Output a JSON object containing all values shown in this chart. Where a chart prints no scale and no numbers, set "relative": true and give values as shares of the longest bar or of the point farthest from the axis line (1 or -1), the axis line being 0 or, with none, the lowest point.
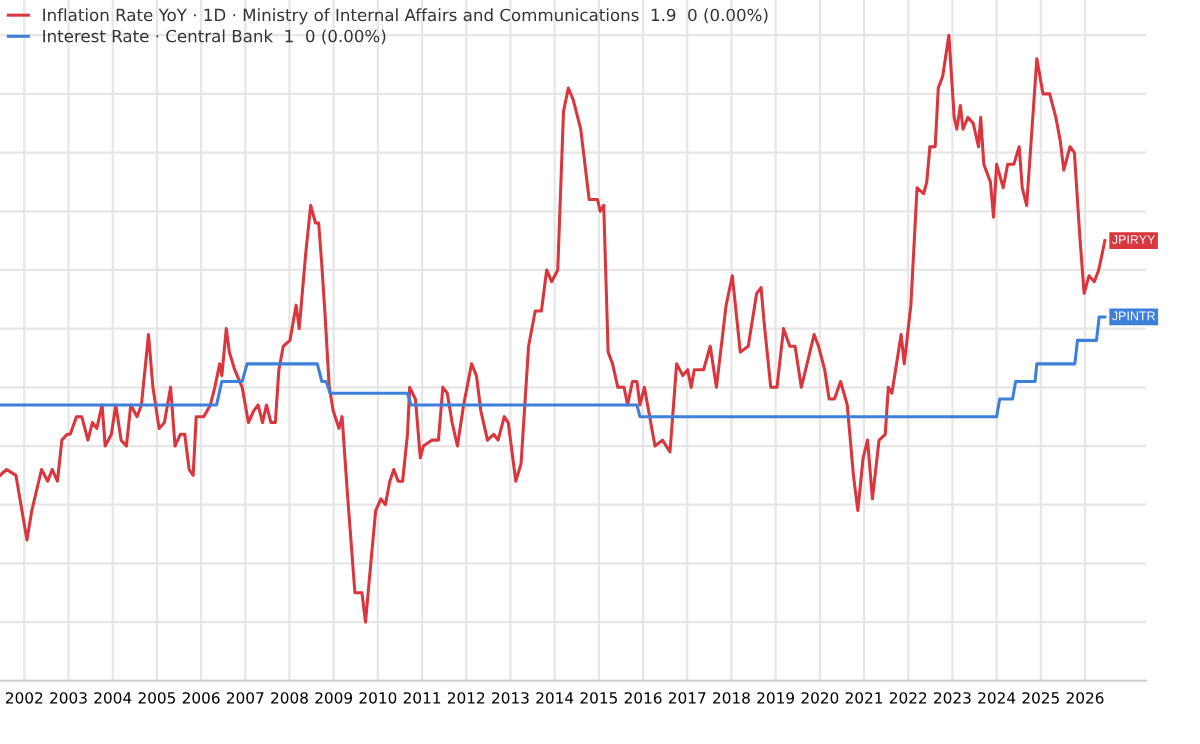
{
  "chart_data": {
    "type": "line",
    "relative": true,
    "grid": true,
    "legend": "top left",
    "marker": "none",
    "line_style": "solid",
    "xlim": [
      2001.45,
      2027.38
    ],
    "xticks": [
      2002,
      2003,
      2004,
      2005,
      2006,
      2007,
      2008,
      2009,
      2010,
      2011,
      2012,
      2013,
      2014,
      2015,
      2016,
      2017,
      2018,
      2019,
      2020,
      2021,
      2022,
      2023,
      2024,
      2025,
      2026
    ],
    "annotations": [
      {
        "text": "JPIRYY",
        "x": 2026.45,
        "y": 0.65
      },
      {
        "text": "JPINTR",
        "x": 2026.45,
        "y": 0.52
      }
    ],
    "series": [
      {
        "name": "Inflation Rate YoY · 1D · Ministry of Internal Affairs and Communications  1.9  0 (0.00%)",
        "color": "#d9363e",
        "x": [
          2001.45,
          2001.6,
          2001.81,
          2002.06,
          2002.17,
          2002.39,
          2002.53,
          2002.63,
          2002.75,
          2002.85,
          2002.97,
          2003.04,
          2003.18,
          2003.3,
          2003.44,
          2003.54,
          2003.64,
          2003.76,
          2003.83,
          2003.97,
          2004.07,
          2004.19,
          2004.31,
          2004.41,
          2004.55,
          2004.65,
          2004.81,
          2004.91,
          2005.05,
          2005.17,
          2005.31,
          2005.41,
          2005.53,
          2005.63,
          2005.73,
          2005.82,
          2005.89,
          2006.06,
          2006.21,
          2006.31,
          2006.42,
          2006.47,
          2006.57,
          2006.64,
          2006.76,
          2006.93,
          2007.07,
          2007.19,
          2007.29,
          2007.39,
          2007.48,
          2007.58,
          2007.68,
          2007.76,
          2007.86,
          2008.01,
          2008.15,
          2008.22,
          2008.37,
          2008.48,
          2008.59,
          2008.66,
          2008.73,
          2008.8,
          2008.9,
          2008.99,
          2009.12,
          2009.19,
          2009.31,
          2009.48,
          2009.64,
          2009.72,
          2009.84,
          2009.95,
          2010.07,
          2010.17,
          2010.27,
          2010.36,
          2010.46,
          2010.56,
          2010.67,
          2010.72,
          2010.85,
          2010.96,
          2011.03,
          2011.22,
          2011.37,
          2011.47,
          2011.57,
          2011.68,
          2011.8,
          2011.94,
          2012.12,
          2012.23,
          2012.33,
          2012.48,
          2012.62,
          2012.72,
          2012.86,
          2012.95,
          2013.12,
          2013.24,
          2013.41,
          2013.56,
          2013.7,
          2013.82,
          2013.93,
          2014.07,
          2014.2,
          2014.31,
          2014.42,
          2014.59,
          2014.78,
          2014.97,
          2015.03,
          2015.11,
          2015.21,
          2015.31,
          2015.43,
          2015.57,
          2015.65,
          2015.76,
          2015.86,
          2015.93,
          2016.03,
          2016.15,
          2016.27,
          2016.44,
          2016.61,
          2016.76,
          2016.9,
          2017.01,
          2017.09,
          2017.16,
          2017.37,
          2017.52,
          2017.66,
          2017.88,
          2018.02,
          2018.2,
          2018.38,
          2018.57,
          2018.67,
          2018.74,
          2018.89,
          2019.03,
          2019.18,
          2019.32,
          2019.44,
          2019.58,
          2019.68,
          2019.87,
          2019.97,
          2020.11,
          2020.21,
          2020.33,
          2020.47,
          2020.62,
          2020.76,
          2020.86,
          2020.98,
          2021.08,
          2021.19,
          2021.34,
          2021.48,
          2021.55,
          2021.63,
          2021.84,
          2021.91,
          2022.06,
          2022.2,
          2022.35,
          2022.42,
          2022.49,
          2022.61,
          2022.68,
          2022.78,
          2022.92,
          2023.04,
          2023.1,
          2023.18,
          2023.24,
          2023.35,
          2023.47,
          2023.59,
          2023.64,
          2023.71,
          2023.86,
          2023.93,
          2024.0,
          2024.15,
          2024.25,
          2024.39,
          2024.51,
          2024.58,
          2024.68,
          2024.8,
          2024.91,
          2025.05,
          2025.2,
          2025.34,
          2025.44,
          2025.52,
          2025.66,
          2025.76,
          2025.88,
          2025.98,
          2026.09,
          2026.21,
          2026.31,
          2026.45
        ],
        "values": [
          0.25,
          0.26,
          0.25,
          0.14,
          0.19,
          0.26,
          0.24,
          0.26,
          0.24,
          0.31,
          0.32,
          0.32,
          0.35,
          0.35,
          0.31,
          0.34,
          0.33,
          0.37,
          0.3,
          0.32,
          0.37,
          0.31,
          0.3,
          0.37,
          0.35,
          0.37,
          0.49,
          0.4,
          0.33,
          0.34,
          0.4,
          0.3,
          0.32,
          0.32,
          0.26,
          0.25,
          0.35,
          0.35,
          0.37,
          0.4,
          0.44,
          0.42,
          0.5,
          0.46,
          0.43,
          0.4,
          0.34,
          0.36,
          0.37,
          0.34,
          0.37,
          0.34,
          0.34,
          0.43,
          0.47,
          0.48,
          0.54,
          0.5,
          0.63,
          0.71,
          0.68,
          0.68,
          0.61,
          0.53,
          0.4,
          0.36,
          0.33,
          0.35,
          0.22,
          0.05,
          0.05,
          0.0,
          0.1,
          0.19,
          0.21,
          0.2,
          0.24,
          0.26,
          0.24,
          0.24,
          0.32,
          0.4,
          0.38,
          0.28,
          0.3,
          0.31,
          0.31,
          0.4,
          0.39,
          0.34,
          0.3,
          0.37,
          0.44,
          0.42,
          0.36,
          0.31,
          0.32,
          0.31,
          0.35,
          0.34,
          0.24,
          0.27,
          0.47,
          0.53,
          0.53,
          0.6,
          0.58,
          0.6,
          0.87,
          0.91,
          0.89,
          0.84,
          0.72,
          0.72,
          0.7,
          0.71,
          0.46,
          0.44,
          0.4,
          0.4,
          0.37,
          0.41,
          0.41,
          0.37,
          0.4,
          0.35,
          0.3,
          0.31,
          0.29,
          0.44,
          0.42,
          0.43,
          0.4,
          0.43,
          0.43,
          0.47,
          0.4,
          0.54,
          0.59,
          0.46,
          0.47,
          0.56,
          0.57,
          0.51,
          0.4,
          0.4,
          0.5,
          0.47,
          0.47,
          0.4,
          0.43,
          0.49,
          0.47,
          0.43,
          0.38,
          0.38,
          0.41,
          0.37,
          0.25,
          0.19,
          0.28,
          0.31,
          0.21,
          0.31,
          0.32,
          0.4,
          0.39,
          0.49,
          0.44,
          0.54,
          0.74,
          0.73,
          0.75,
          0.81,
          0.81,
          0.91,
          0.93,
          1.0,
          0.86,
          0.84,
          0.88,
          0.84,
          0.86,
          0.85,
          0.81,
          0.86,
          0.78,
          0.75,
          0.69,
          0.78,
          0.74,
          0.78,
          0.78,
          0.81,
          0.74,
          0.71,
          0.84,
          0.96,
          0.9,
          0.9,
          0.86,
          0.82,
          0.77,
          0.81,
          0.8,
          0.66,
          0.56,
          0.59,
          0.58,
          0.6,
          0.65
        ]
      },
      {
        "name": "Interest Rate · Central Bank  1  0 (0.00%)",
        "color": "#3d7fd9",
        "x": [
          2001.45,
          2006.35,
          2006.47,
          2006.93,
          2007.04,
          2008.63,
          2008.73,
          2008.83,
          2008.92,
          2010.67,
          2010.75,
          2015.86,
          2015.93,
          2024.0,
          2024.07,
          2024.36,
          2024.43,
          2024.87,
          2024.91,
          2025.77,
          2025.83,
          2026.26,
          2026.32,
          2026.45
        ],
        "values": [
          0.37,
          0.37,
          0.41,
          0.41,
          0.44,
          0.44,
          0.41,
          0.41,
          0.39,
          0.39,
          0.37,
          0.37,
          0.35,
          0.35,
          0.38,
          0.38,
          0.41,
          0.41,
          0.44,
          0.44,
          0.48,
          0.48,
          0.52,
          0.52
        ]
      }
    ]
  }
}
